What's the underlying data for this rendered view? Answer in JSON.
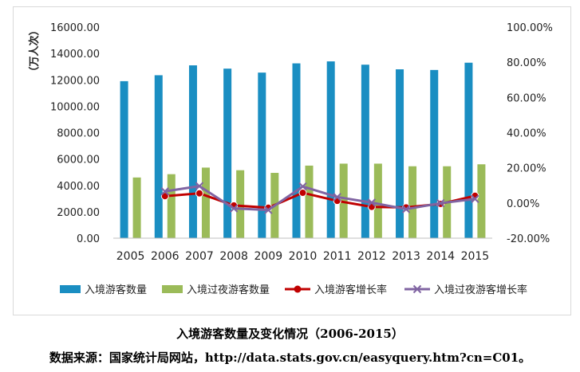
{
  "caption": {
    "title": "入境游客数量及变化情况（2006-2015）",
    "source": "数据来源：国家统计局网站，http://data.stats.gov.cn/easyquery.htm?cn=C01。"
  },
  "chart_data": {
    "type": "bar",
    "ylabel": "（万人次）",
    "categories": [
      "2005",
      "2006",
      "2007",
      "2008",
      "2009",
      "2010",
      "2011",
      "2012",
      "2013",
      "2014",
      "2015"
    ],
    "y_left": {
      "ylim": [
        0,
        16000
      ],
      "ticks": [
        "0.00",
        "2000.00",
        "4000.00",
        "6000.00",
        "8000.00",
        "10000.00",
        "12000.00",
        "14000.00",
        "16000.00"
      ]
    },
    "y_right": {
      "ylim": [
        -20,
        100
      ],
      "ticks": [
        "-20.00%",
        "0.00%",
        "20.00%",
        "40.00%",
        "60.00%",
        "80.00%",
        "100.00%"
      ]
    },
    "grid": false,
    "legend_position": "bottom",
    "series": [
      {
        "name": "入境游客数量",
        "kind": "bar",
        "axis": "left",
        "color": "#1a8ec2",
        "values": [
          11900,
          12350,
          13100,
          12850,
          12550,
          13250,
          13400,
          13150,
          12800,
          12750,
          13300
        ]
      },
      {
        "name": "入境过夜游客数量",
        "kind": "bar",
        "axis": "left",
        "color": "#9bbb59",
        "values": [
          4600,
          4850,
          5350,
          5150,
          4950,
          5500,
          5650,
          5650,
          5450,
          5450,
          5600
        ]
      },
      {
        "name": "入境游客增长率",
        "kind": "line",
        "axis": "right",
        "color": "#c00000",
        "marker": "circle",
        "values": [
          null,
          3.9,
          5.5,
          -1.4,
          -2.7,
          5.8,
          1.2,
          -2.2,
          -2.5,
          -0.5,
          4.1
        ]
      },
      {
        "name": "入境过夜游客增长率",
        "kind": "line",
        "axis": "right",
        "color": "#8064a2",
        "marker": "x",
        "values": [
          null,
          6.6,
          9.6,
          -3.1,
          -4.0,
          9.4,
          3.4,
          0.2,
          -3.5,
          -0.1,
          2.3
        ]
      }
    ]
  }
}
